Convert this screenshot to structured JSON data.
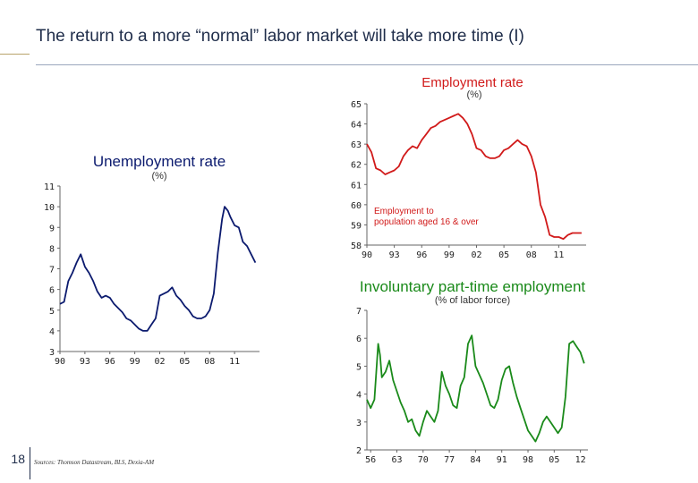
{
  "slide": {
    "title": "The return to a more “normal” labor market will take more time (I)",
    "page_number": "18",
    "sources": "Sources: Thomson Datastream, BLS, Dexia-AM"
  },
  "colors": {
    "unemployment": "#0b1a6e",
    "employment": "#d11a1a",
    "involuntary": "#1a8a1a",
    "title_navy": "#1f2d4a"
  },
  "chart_data": [
    {
      "id": "unemployment",
      "type": "line",
      "title": "Unemployment rate",
      "subtitle": "(%)",
      "xlabel": "",
      "ylabel": "",
      "xlim": [
        1990,
        2014
      ],
      "ylim": [
        3,
        11
      ],
      "xticks": [
        1990,
        1993,
        1996,
        1999,
        2002,
        2005,
        2008,
        2011
      ],
      "xtick_labels": [
        "90",
        "93",
        "96",
        "99",
        "02",
        "05",
        "08",
        "11"
      ],
      "yticks": [
        3,
        4,
        5,
        6,
        7,
        8,
        9,
        10,
        11
      ],
      "grid": false,
      "series": [
        {
          "color": "#0b1a6e",
          "points": [
            [
              1990,
              5.3
            ],
            [
              1990.5,
              5.4
            ],
            [
              1991,
              6.4
            ],
            [
              1991.5,
              6.8
            ],
            [
              1992,
              7.3
            ],
            [
              1992.5,
              7.7
            ],
            [
              1993,
              7.1
            ],
            [
              1993.5,
              6.8
            ],
            [
              1994,
              6.4
            ],
            [
              1994.5,
              5.9
            ],
            [
              1995,
              5.6
            ],
            [
              1995.5,
              5.7
            ],
            [
              1996,
              5.6
            ],
            [
              1996.5,
              5.3
            ],
            [
              1997,
              5.1
            ],
            [
              1997.5,
              4.9
            ],
            [
              1998,
              4.6
            ],
            [
              1998.5,
              4.5
            ],
            [
              1999,
              4.3
            ],
            [
              1999.5,
              4.1
            ],
            [
              2000,
              4.0
            ],
            [
              2000.5,
              4.0
            ],
            [
              2001,
              4.3
            ],
            [
              2001.5,
              4.6
            ],
            [
              2002,
              5.7
            ],
            [
              2002.5,
              5.8
            ],
            [
              2003,
              5.9
            ],
            [
              2003.5,
              6.1
            ],
            [
              2004,
              5.7
            ],
            [
              2004.5,
              5.5
            ],
            [
              2005,
              5.2
            ],
            [
              2005.5,
              5.0
            ],
            [
              2006,
              4.7
            ],
            [
              2006.5,
              4.6
            ],
            [
              2007,
              4.6
            ],
            [
              2007.5,
              4.7
            ],
            [
              2008,
              5.0
            ],
            [
              2008.5,
              5.8
            ],
            [
              2009,
              7.8
            ],
            [
              2009.5,
              9.4
            ],
            [
              2009.8,
              10.0
            ],
            [
              2010.2,
              9.8
            ],
            [
              2010.5,
              9.5
            ],
            [
              2011,
              9.1
            ],
            [
              2011.5,
              9.0
            ],
            [
              2012,
              8.3
            ],
            [
              2012.5,
              8.1
            ],
            [
              2013,
              7.7
            ],
            [
              2013.5,
              7.3
            ]
          ]
        }
      ]
    },
    {
      "id": "employment",
      "type": "line",
      "title": "Employment rate",
      "subtitle": "(%)",
      "annotation": "Employment to\npopulation aged 16 & over",
      "xlabel": "",
      "ylabel": "",
      "xlim": [
        1990,
        2014
      ],
      "ylim": [
        58,
        65
      ],
      "xticks": [
        1990,
        1993,
        1996,
        1999,
        2002,
        2005,
        2008,
        2011
      ],
      "xtick_labels": [
        "90",
        "93",
        "96",
        "99",
        "02",
        "05",
        "08",
        "11"
      ],
      "yticks": [
        58,
        59,
        60,
        61,
        62,
        63,
        64,
        65
      ],
      "grid": false,
      "series": [
        {
          "color": "#d11a1a",
          "points": [
            [
              1990,
              63.0
            ],
            [
              1990.5,
              62.6
            ],
            [
              1991,
              61.8
            ],
            [
              1991.5,
              61.7
            ],
            [
              1992,
              61.5
            ],
            [
              1992.5,
              61.6
            ],
            [
              1993,
              61.7
            ],
            [
              1993.5,
              61.9
            ],
            [
              1994,
              62.4
            ],
            [
              1994.5,
              62.7
            ],
            [
              1995,
              62.9
            ],
            [
              1995.5,
              62.8
            ],
            [
              1996,
              63.2
            ],
            [
              1996.5,
              63.5
            ],
            [
              1997,
              63.8
            ],
            [
              1997.5,
              63.9
            ],
            [
              1998,
              64.1
            ],
            [
              1998.5,
              64.2
            ],
            [
              1999,
              64.3
            ],
            [
              1999.5,
              64.4
            ],
            [
              2000,
              64.5
            ],
            [
              2000.5,
              64.3
            ],
            [
              2001,
              64.0
            ],
            [
              2001.5,
              63.5
            ],
            [
              2002,
              62.8
            ],
            [
              2002.5,
              62.7
            ],
            [
              2003,
              62.4
            ],
            [
              2003.5,
              62.3
            ],
            [
              2004,
              62.3
            ],
            [
              2004.5,
              62.4
            ],
            [
              2005,
              62.7
            ],
            [
              2005.5,
              62.8
            ],
            [
              2006,
              63.0
            ],
            [
              2006.5,
              63.2
            ],
            [
              2007,
              63.0
            ],
            [
              2007.5,
              62.9
            ],
            [
              2008,
              62.4
            ],
            [
              2008.5,
              61.6
            ],
            [
              2009,
              60.0
            ],
            [
              2009.5,
              59.4
            ],
            [
              2010,
              58.5
            ],
            [
              2010.5,
              58.4
            ],
            [
              2011,
              58.4
            ],
            [
              2011.5,
              58.3
            ],
            [
              2012,
              58.5
            ],
            [
              2012.5,
              58.6
            ],
            [
              2013,
              58.6
            ],
            [
              2013.5,
              58.6
            ]
          ]
        }
      ]
    },
    {
      "id": "involuntary",
      "type": "line",
      "title": "Involuntary part-time employment",
      "subtitle": "(% of labor force)",
      "xlabel": "",
      "ylabel": "",
      "xlim": [
        1955,
        2014
      ],
      "ylim": [
        2,
        7
      ],
      "xticks": [
        1956,
        1963,
        1970,
        1977,
        1984,
        1991,
        1998,
        2005,
        2012
      ],
      "xtick_labels": [
        "56",
        "63",
        "70",
        "77",
        "84",
        "91",
        "98",
        "05",
        "12"
      ],
      "yticks": [
        2,
        3,
        4,
        5,
        6,
        7
      ],
      "grid": false,
      "series": [
        {
          "color": "#1a8a1a",
          "points": [
            [
              1955,
              3.8
            ],
            [
              1956,
              3.5
            ],
            [
              1957,
              3.8
            ],
            [
              1958,
              5.8
            ],
            [
              1958.5,
              5.4
            ],
            [
              1959,
              4.6
            ],
            [
              1960,
              4.8
            ],
            [
              1961,
              5.2
            ],
            [
              1962,
              4.5
            ],
            [
              1963,
              4.1
            ],
            [
              1964,
              3.7
            ],
            [
              1965,
              3.4
            ],
            [
              1966,
              3.0
            ],
            [
              1967,
              3.1
            ],
            [
              1968,
              2.7
            ],
            [
              1969,
              2.5
            ],
            [
              1970,
              3.0
            ],
            [
              1971,
              3.4
            ],
            [
              1972,
              3.2
            ],
            [
              1973,
              3.0
            ],
            [
              1974,
              3.4
            ],
            [
              1975,
              4.8
            ],
            [
              1976,
              4.3
            ],
            [
              1977,
              4.0
            ],
            [
              1978,
              3.6
            ],
            [
              1979,
              3.5
            ],
            [
              1980,
              4.3
            ],
            [
              1981,
              4.6
            ],
            [
              1982,
              5.8
            ],
            [
              1983,
              6.1
            ],
            [
              1984,
              5.0
            ],
            [
              1985,
              4.7
            ],
            [
              1986,
              4.4
            ],
            [
              1987,
              4.0
            ],
            [
              1988,
              3.6
            ],
            [
              1989,
              3.5
            ],
            [
              1990,
              3.8
            ],
            [
              1991,
              4.5
            ],
            [
              1992,
              4.9
            ],
            [
              1993,
              5.0
            ],
            [
              1994,
              4.4
            ],
            [
              1995,
              3.9
            ],
            [
              1996,
              3.5
            ],
            [
              1997,
              3.1
            ],
            [
              1998,
              2.7
            ],
            [
              1999,
              2.5
            ],
            [
              2000,
              2.3
            ],
            [
              2001,
              2.6
            ],
            [
              2002,
              3.0
            ],
            [
              2003,
              3.2
            ],
            [
              2004,
              3.0
            ],
            [
              2005,
              2.8
            ],
            [
              2006,
              2.6
            ],
            [
              2007,
              2.8
            ],
            [
              2008,
              3.9
            ],
            [
              2009,
              5.8
            ],
            [
              2010,
              5.9
            ],
            [
              2011,
              5.7
            ],
            [
              2012,
              5.5
            ],
            [
              2013,
              5.1
            ]
          ]
        }
      ]
    }
  ]
}
